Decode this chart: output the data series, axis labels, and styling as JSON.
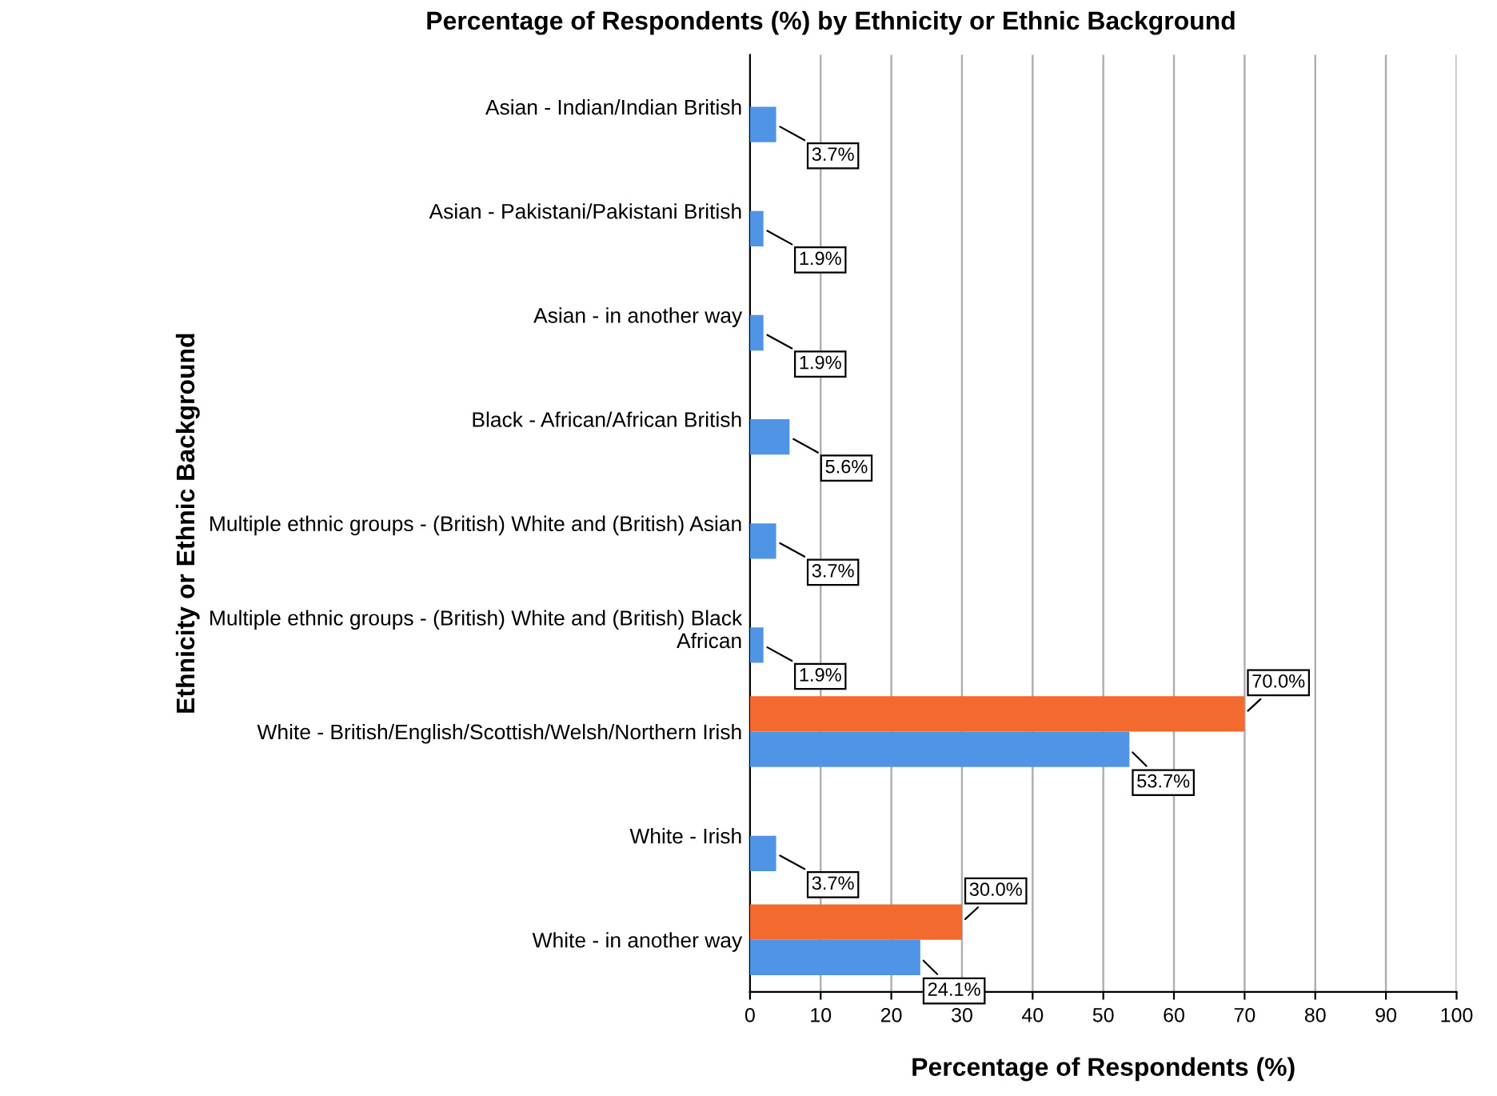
{
  "chart_data": {
    "type": "bar",
    "orientation": "horizontal",
    "title": "Percentage of Respondents (%) by Ethnicity or Ethnic Background",
    "xlabel": "Percentage of Respondents (%)",
    "ylabel": "Ethnicity or Ethnic Background",
    "categories": [
      "Asian - Indian/Indian British",
      "Asian - Pakistani/Pakistani British",
      "Asian - in another way",
      "Black - African/African British",
      "Multiple ethnic groups - (British) White and (British) Asian",
      "Multiple ethnic groups - (British) White and (British) Black African",
      "White - British/English/Scottish/Welsh/Northern Irish",
      "White - Irish",
      "White - in another way"
    ],
    "series": [
      {
        "color": "#f26a2e",
        "values": [
          null,
          null,
          null,
          null,
          null,
          null,
          70.0,
          null,
          30.0
        ],
        "value_labels": [
          null,
          null,
          null,
          null,
          null,
          null,
          "70.0%",
          null,
          "30.0%"
        ]
      },
      {
        "color": "#5094e6",
        "values": [
          3.7,
          1.9,
          1.9,
          5.6,
          3.7,
          1.9,
          53.7,
          3.7,
          24.1
        ],
        "value_labels": [
          "3.7%",
          "1.9%",
          "1.9%",
          "5.6%",
          "3.7%",
          "1.9%",
          "53.7%",
          "3.7%",
          "24.1%"
        ]
      }
    ],
    "xlim": [
      0,
      100
    ],
    "xticks": [
      0,
      10,
      20,
      30,
      40,
      50,
      60,
      70,
      80,
      90,
      100
    ],
    "grid": "x",
    "legend": false
  }
}
